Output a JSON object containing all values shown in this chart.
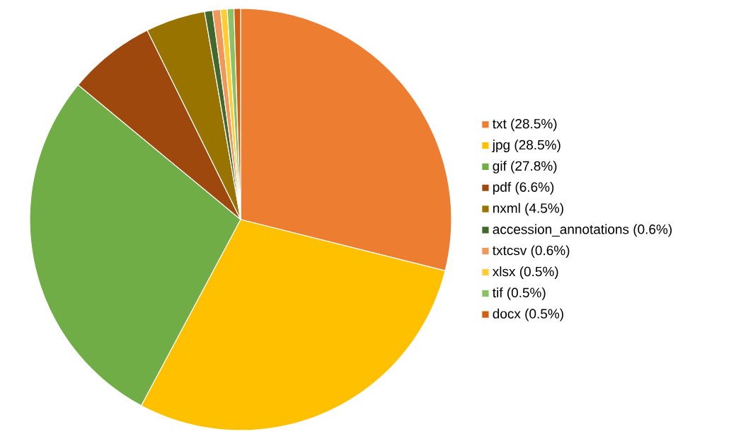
{
  "chart_data": {
    "type": "pie",
    "categories": [
      "txt (28.5%)",
      "jpg (28.5%)",
      "gif (27.8%)",
      "pdf (6.6%)",
      "nxml (4.5%)",
      "accession_annotations (0.6%)",
      "txtcsv (0.6%)",
      "xlsx (0.5%)",
      "tif (0.5%)",
      "docx (0.5%)"
    ],
    "values": [
      28.5,
      28.5,
      27.8,
      6.6,
      4.5,
      0.6,
      0.6,
      0.5,
      0.5,
      0.5
    ],
    "colors": [
      "#ed7d31",
      "#ffc000",
      "#70ad47",
      "#9e480e",
      "#997300",
      "#43682b",
      "#f1975a",
      "#ffcd33",
      "#8cc168",
      "#d26012"
    ],
    "legend": "right"
  }
}
